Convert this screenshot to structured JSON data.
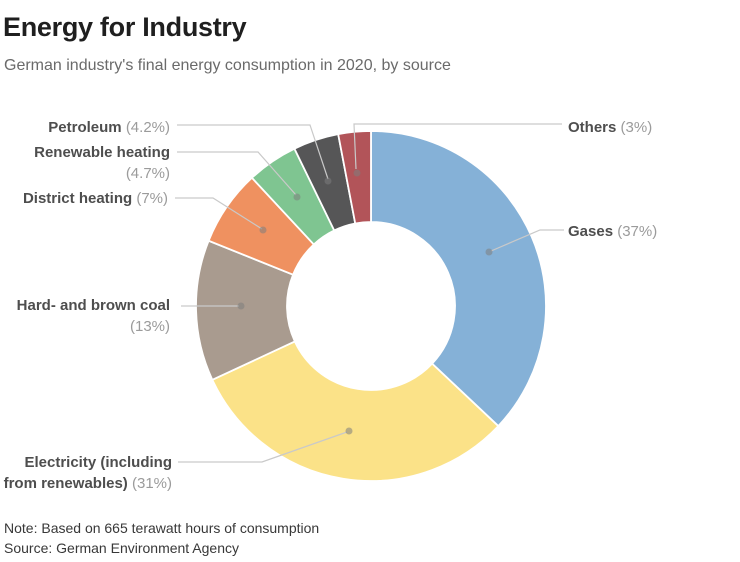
{
  "header": {
    "title": "Energy for Industry",
    "subtitle": "German industry's final energy consumption in 2020, by source"
  },
  "chart_data": {
    "type": "pie",
    "subtype": "donut",
    "title": "Energy for Industry",
    "subtitle": "German industry's final energy consumption in 2020, by source",
    "unit": "%",
    "start_angle_deg": 0,
    "direction": "clockwise",
    "legend_position": "callout-labels",
    "segments": [
      {
        "label": "Gases",
        "pct_label": "(37%)",
        "value": 37,
        "color": "#85b1d7"
      },
      {
        "label": "Electricity (including from renewables)",
        "pct_label": "(31%)",
        "value": 31,
        "color": "#fbe288"
      },
      {
        "label": "Hard- and brown coal",
        "pct_label": "(13%)",
        "value": 13,
        "color": "#a99b8f"
      },
      {
        "label": "District heating",
        "pct_label": "(7%)",
        "value": 7,
        "color": "#ef9160"
      },
      {
        "label": "Renewable heating",
        "pct_label": "(4.7%)",
        "value": 4.7,
        "color": "#7fc591"
      },
      {
        "label": "Petroleum",
        "pct_label": "(4.2%)",
        "value": 4.2,
        "color": "#565657"
      },
      {
        "label": "Others",
        "pct_label": "(3%)",
        "value": 3,
        "color": "#b25459"
      }
    ]
  },
  "footer": {
    "note": "Note: Based on 665 terawatt hours of consumption",
    "source": "Source: German Environment Agency"
  }
}
